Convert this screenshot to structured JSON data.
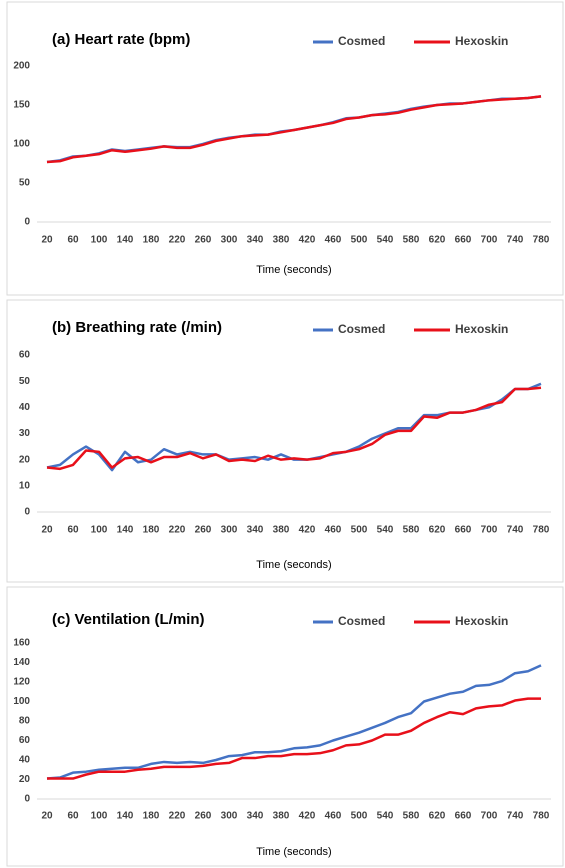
{
  "chart_data": [
    {
      "type": "line",
      "title": "(a) Heart rate (bpm)",
      "x_label": "Time (seconds)",
      "x": [
        20,
        40,
        60,
        80,
        100,
        120,
        140,
        160,
        180,
        200,
        220,
        240,
        260,
        280,
        300,
        320,
        340,
        360,
        380,
        400,
        420,
        440,
        460,
        480,
        500,
        520,
        540,
        560,
        580,
        600,
        620,
        640,
        660,
        680,
        700,
        720,
        740,
        760,
        780
      ],
      "xlim": [
        20,
        780
      ],
      "xticks": [
        20,
        60,
        100,
        140,
        180,
        220,
        260,
        300,
        340,
        380,
        420,
        460,
        500,
        540,
        580,
        620,
        660,
        700,
        740,
        780
      ],
      "ylim": [
        0,
        200
      ],
      "yticks": [
        0,
        50,
        100,
        150,
        200
      ],
      "grid": false,
      "legend": "top-right",
      "series": [
        {
          "name": "Cosmed",
          "color": "#4472c4",
          "values": [
            77,
            79,
            84,
            85,
            88,
            93,
            91,
            93,
            95,
            97,
            96,
            96,
            100,
            105,
            108,
            110,
            112,
            112,
            116,
            118,
            121,
            124,
            128,
            133,
            134,
            137,
            139,
            141,
            145,
            148,
            150,
            152,
            152,
            154,
            156,
            158,
            158,
            159,
            161
          ]
        },
        {
          "name": "Hexoskin",
          "color": "#e8101a",
          "values": [
            77,
            78,
            83,
            85,
            87,
            92,
            90,
            92,
            94,
            97,
            95,
            95,
            99,
            104,
            107,
            110,
            111,
            112,
            115,
            118,
            121,
            124,
            127,
            132,
            134,
            137,
            138,
            140,
            144,
            147,
            150,
            151,
            152,
            154,
            156,
            157,
            158,
            159,
            161
          ]
        }
      ]
    },
    {
      "type": "line",
      "title": "(b) Breathing rate (/min)",
      "x_label": "Time (seconds)",
      "x": [
        20,
        40,
        60,
        80,
        100,
        120,
        140,
        160,
        180,
        200,
        220,
        240,
        260,
        280,
        300,
        320,
        340,
        360,
        380,
        400,
        420,
        440,
        460,
        480,
        500,
        520,
        540,
        560,
        580,
        600,
        620,
        640,
        660,
        680,
        700,
        720,
        740,
        760,
        780
      ],
      "xlim": [
        20,
        780
      ],
      "xticks": [
        20,
        60,
        100,
        140,
        180,
        220,
        260,
        300,
        340,
        380,
        420,
        460,
        500,
        540,
        580,
        620,
        660,
        700,
        740,
        780
      ],
      "ylim": [
        0,
        60
      ],
      "yticks": [
        0,
        10,
        20,
        30,
        40,
        50,
        60
      ],
      "grid": false,
      "legend": "top-right",
      "series": [
        {
          "name": "Cosmed",
          "color": "#4472c4",
          "values": [
            17,
            18,
            22,
            25,
            22,
            16,
            23,
            19,
            20,
            24,
            22,
            23,
            22,
            22,
            20,
            20.5,
            21,
            20,
            22,
            20,
            20,
            21,
            22,
            23,
            25,
            28,
            30,
            32,
            32,
            37,
            37,
            38,
            38,
            39,
            40,
            43,
            47,
            47,
            49
          ]
        },
        {
          "name": "Hexoskin",
          "color": "#e8101a",
          "values": [
            17,
            16.5,
            18,
            23.5,
            23,
            17,
            20.5,
            21,
            19,
            21,
            21,
            22.5,
            20.5,
            22,
            19.5,
            20,
            19.5,
            21.5,
            20,
            20.5,
            20,
            20.5,
            22.5,
            23,
            24,
            26,
            29.5,
            31,
            31,
            36.5,
            36,
            38,
            38,
            39,
            41,
            42,
            47,
            47,
            47.5
          ]
        }
      ]
    },
    {
      "type": "line",
      "title": "(c) Ventilation (L/min)",
      "x_label": "Time (seconds)",
      "x": [
        20,
        40,
        60,
        80,
        100,
        120,
        140,
        160,
        180,
        200,
        220,
        240,
        260,
        280,
        300,
        320,
        340,
        360,
        380,
        400,
        420,
        440,
        460,
        480,
        500,
        520,
        540,
        560,
        580,
        600,
        620,
        640,
        660,
        680,
        700,
        720,
        740,
        760,
        780
      ],
      "xlim": [
        20,
        780
      ],
      "xticks": [
        20,
        60,
        100,
        140,
        180,
        220,
        260,
        300,
        340,
        380,
        420,
        460,
        500,
        540,
        580,
        620,
        660,
        700,
        740,
        780
      ],
      "ylim": [
        0,
        160
      ],
      "yticks": [
        0,
        20,
        40,
        60,
        80,
        100,
        120,
        140,
        160
      ],
      "grid": false,
      "legend": "top-right",
      "series": [
        {
          "name": "Cosmed",
          "color": "#4472c4",
          "values": [
            21,
            22,
            27,
            28,
            30,
            31,
            32,
            32,
            36,
            38,
            37,
            38,
            37,
            40,
            44,
            45,
            48,
            48,
            49,
            52,
            53,
            55,
            60,
            64,
            68,
            73,
            78,
            84,
            88,
            100,
            104,
            108,
            110,
            116,
            117,
            121,
            129,
            131,
            137
          ]
        },
        {
          "name": "Hexoskin",
          "color": "#e8101a",
          "values": [
            21,
            21,
            21,
            25,
            28,
            28,
            28,
            30,
            31,
            33,
            33,
            33,
            34,
            36,
            37,
            42,
            42,
            44,
            44,
            46,
            46,
            47,
            50,
            55,
            56,
            60,
            66,
            66,
            70,
            78,
            84,
            89,
            87,
            93,
            95,
            96,
            101,
            103,
            103
          ]
        }
      ]
    }
  ]
}
